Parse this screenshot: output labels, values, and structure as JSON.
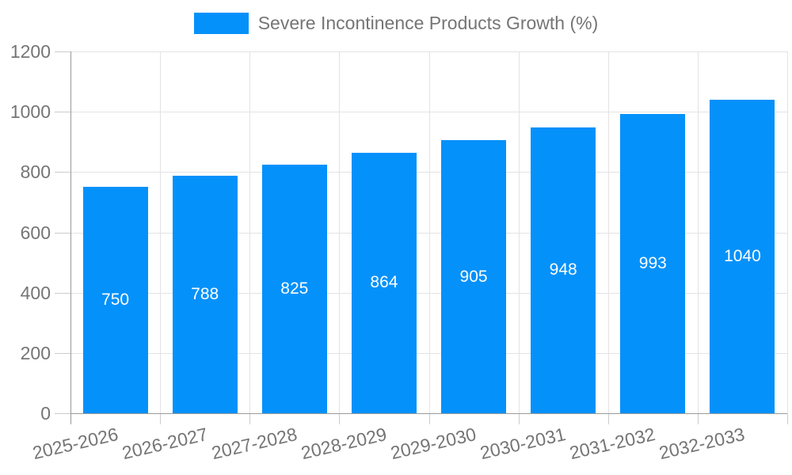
{
  "chart_data": {
    "type": "bar",
    "title": "",
    "xlabel": "",
    "ylabel": "",
    "series_label": "Severe Incontinence Products Growth (%)",
    "categories": [
      "2025-2026",
      "2026-2027",
      "2027-2028",
      "2028-2029",
      "2029-2030",
      "2030-2031",
      "2031-2032",
      "2032-2033"
    ],
    "values": [
      750,
      788,
      825,
      864,
      905,
      948,
      993,
      1040
    ],
    "ylim": [
      0,
      1200
    ],
    "yticks": [
      0,
      200,
      400,
      600,
      800,
      1000,
      1200
    ],
    "grid": true,
    "legend_position": "top",
    "x_label_rotation_deg": -13,
    "bar_color": "#0591fa",
    "value_label_color": "#ffffff",
    "text_color": "#757575",
    "gridline_color": "#e3e3e3",
    "axis_color": "#9a9a9a",
    "tick_color": "#cccccc",
    "background_color": "#ffffff"
  }
}
